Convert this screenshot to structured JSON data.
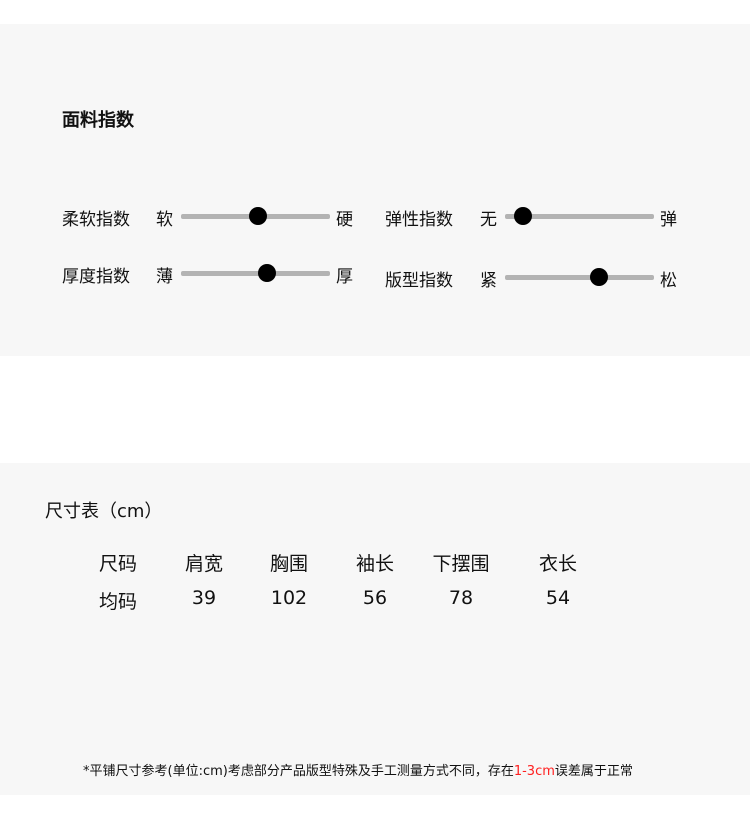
{
  "fabric": {
    "title": "面料指数",
    "sliders": [
      {
        "name": "柔软指数",
        "min": "软",
        "max": "硬",
        "value": 52
      },
      {
        "name": "弹性指数",
        "min": "无",
        "max": "弹",
        "value": 12
      },
      {
        "name": "厚度指数",
        "min": "薄",
        "max": "厚",
        "value": 58
      },
      {
        "name": "版型指数",
        "min": "紧",
        "max": "松",
        "value": 63
      }
    ]
  },
  "size": {
    "title": "尺寸表（cm）",
    "headers": [
      "尺码",
      "肩宽",
      "胸围",
      "袖长",
      "下摆围",
      "衣长"
    ],
    "rows": [
      [
        "均码",
        "39",
        "102",
        "56",
        "78",
        "54"
      ]
    ]
  },
  "note": {
    "before": "*平铺尺寸参考(单位:cm)考虑部分产品版型特殊及手工测量方式不同，存在",
    "highlight": "1-3cm",
    "after": "误差属于正常",
    "highlight_color": "#ff2020"
  }
}
